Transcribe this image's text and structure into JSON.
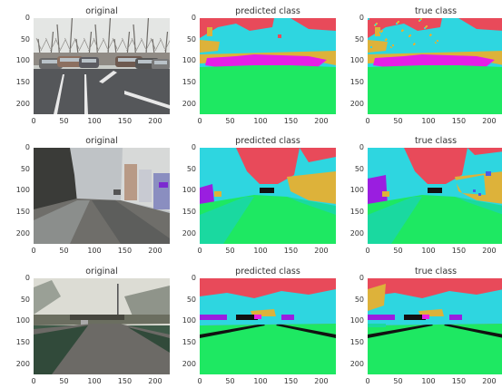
{
  "rows": [
    {
      "titles": [
        "original",
        "predicted class",
        "true class"
      ]
    },
    {
      "titles": [
        "original",
        "predicted class",
        "true class"
      ]
    },
    {
      "titles": [
        "original",
        "predicted class",
        "true class"
      ]
    }
  ],
  "axes": {
    "y_ticks": [
      "0",
      "50",
      "100",
      "150",
      "200"
    ],
    "x_ticks": [
      "0",
      "50",
      "100",
      "150",
      "200"
    ],
    "range": [
      0,
      224
    ]
  },
  "colors": {
    "sky": "#e84a5a",
    "building": "#2ed6e0",
    "vegetation": "#ddb23a",
    "car": "#e61ee6",
    "road": "#1ee862",
    "sidewalk": "#1ad9a0",
    "pole": "#f08a30",
    "wall": "#9a1ee0",
    "sign": "#4a5ee8",
    "dark": "#111111"
  }
}
